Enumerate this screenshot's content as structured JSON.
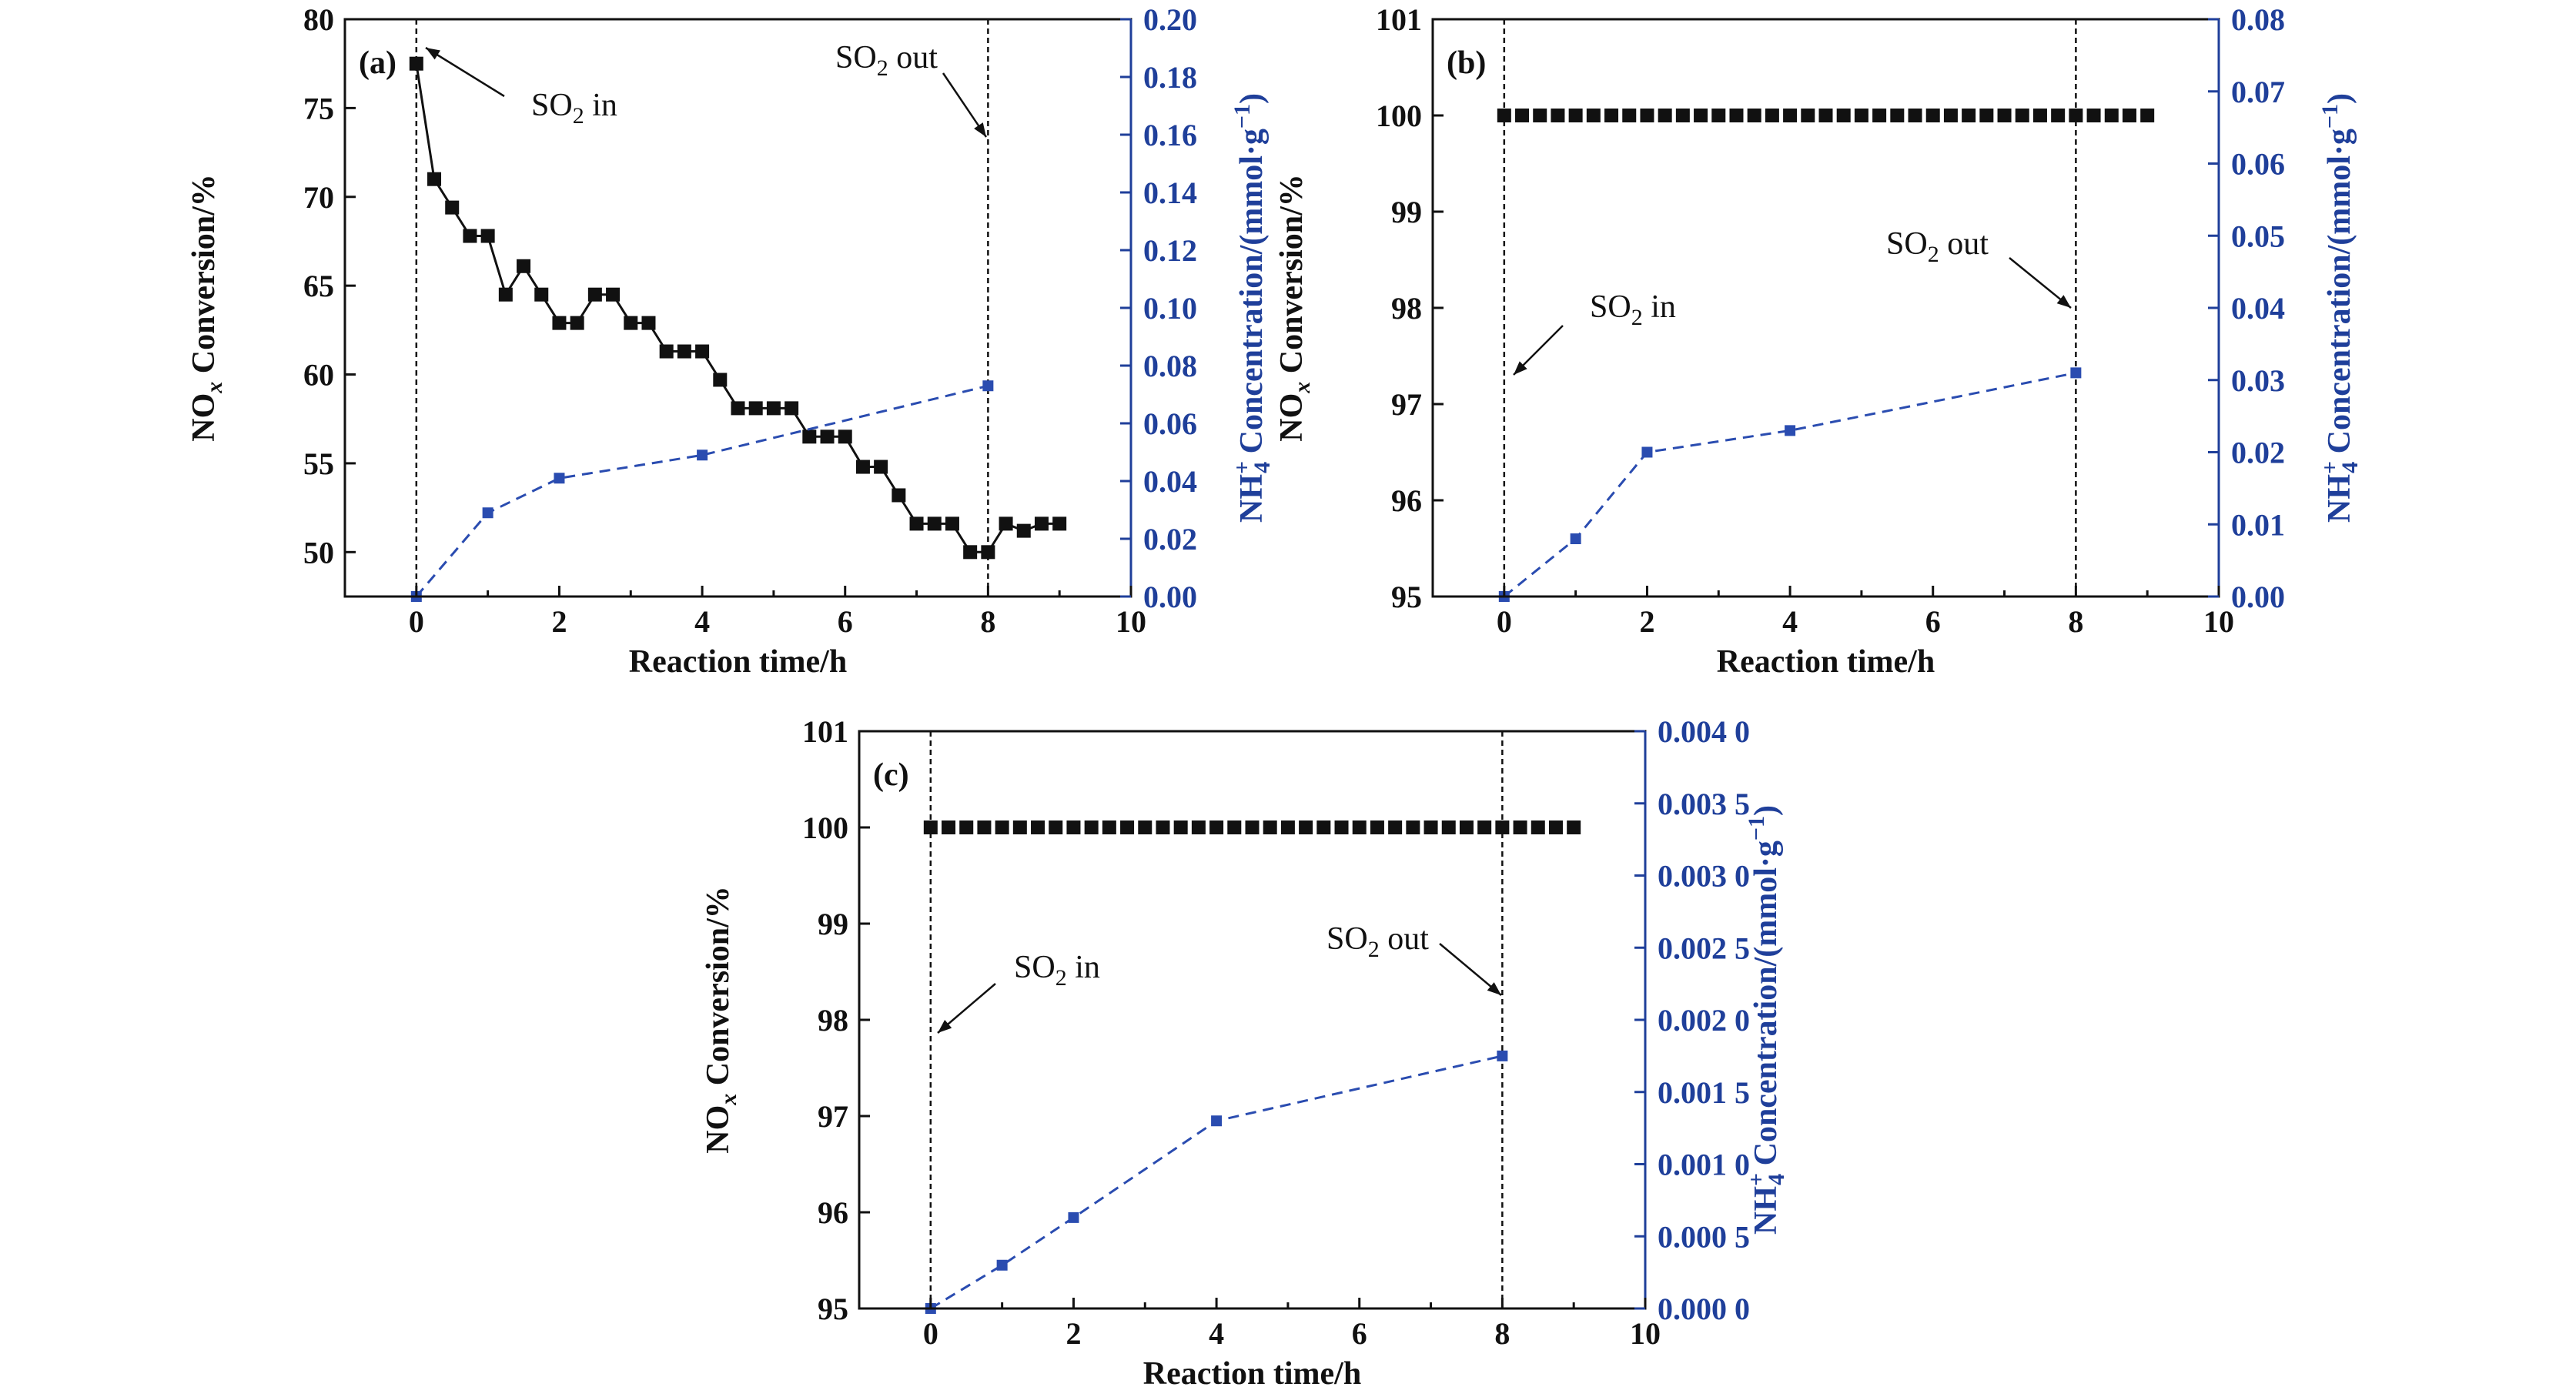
{
  "chart_data": [
    {
      "panel_label": "(a)",
      "type": "line",
      "xlabel": "Reaction time/h",
      "ylabel": {
        "main": "NO",
        "sub": "x",
        "tail": " Conversion/%"
      },
      "y2label": {
        "main": "NH",
        "sup": "+",
        "sub": "4",
        "tail": " Concentration/(mmol·g",
        "tail_sup": "−1",
        "close": ")"
      },
      "xlim": [
        -1,
        10
      ],
      "ylim": [
        47.5,
        80
      ],
      "y2lim": [
        0,
        0.2
      ],
      "x_ticks": [
        0,
        2,
        4,
        6,
        8,
        10
      ],
      "x_tick_labels": [
        "0",
        "2",
        "4",
        "6",
        "8",
        "10"
      ],
      "y_ticks": [
        50,
        55,
        60,
        65,
        70,
        75,
        80
      ],
      "y_tick_labels": [
        "50",
        "55",
        "60",
        "65",
        "70",
        "75",
        "80"
      ],
      "y2_ticks": [
        0,
        0.02,
        0.04,
        0.06,
        0.08,
        0.1,
        0.12,
        0.14,
        0.16,
        0.18,
        0.2
      ],
      "y2_tick_labels": [
        "0.00",
        "0.02",
        "0.04",
        "0.06",
        "0.08",
        "0.10",
        "0.12",
        "0.14",
        "0.16",
        "0.18",
        "0.20"
      ],
      "y2_color": "#1f3f9a",
      "vlines": [
        0,
        8
      ],
      "series": [
        {
          "axis": "left",
          "color": "#111111",
          "style": "solid",
          "x": [
            0,
            0.25,
            0.5,
            0.75,
            1.0,
            1.25,
            1.5,
            1.75,
            2.0,
            2.25,
            2.5,
            2.75,
            3.0,
            3.25,
            3.5,
            3.75,
            4.0,
            4.25,
            4.5,
            4.75,
            5.0,
            5.25,
            5.5,
            5.75,
            6.0,
            6.25,
            6.5,
            6.75,
            7.0,
            7.25,
            7.5,
            7.75,
            8.0,
            8.25,
            8.5,
            8.75,
            9.0
          ],
          "y": [
            77.5,
            71.0,
            69.4,
            67.8,
            67.8,
            64.5,
            66.1,
            64.5,
            62.9,
            62.9,
            64.5,
            64.5,
            62.9,
            62.9,
            61.3,
            61.3,
            61.3,
            59.7,
            58.1,
            58.1,
            58.1,
            58.1,
            56.5,
            56.5,
            56.5,
            54.8,
            54.8,
            53.2,
            51.6,
            51.6,
            51.6,
            50.0,
            50.0,
            51.6,
            51.2,
            51.6,
            51.6
          ]
        },
        {
          "axis": "right",
          "color": "#2a4cb0",
          "style": "dashed",
          "x": [
            0,
            1,
            2,
            4,
            8
          ],
          "y": [
            0.0,
            0.029,
            0.041,
            0.049,
            0.073
          ]
        }
      ],
      "annotations": [
        {
          "main": "SO",
          "sub": "2",
          "tail": " in"
        },
        {
          "main": "SO",
          "sub": "2",
          "tail": " out"
        }
      ]
    },
    {
      "panel_label": "(b)",
      "type": "line",
      "xlabel": "Reaction time/h",
      "ylabel": {
        "main": "NO",
        "sub": "x",
        "tail": " Conversion/%"
      },
      "y2label": {
        "main": "NH",
        "sup": "+",
        "sub": "4",
        "tail": " Concentration/(mmol·g",
        "tail_sup": "−1",
        "close": ")"
      },
      "xlim": [
        -1,
        10
      ],
      "ylim": [
        95,
        101
      ],
      "y2lim": [
        0,
        0.08
      ],
      "x_ticks": [
        0,
        2,
        4,
        6,
        8,
        10
      ],
      "x_tick_labels": [
        "0",
        "2",
        "4",
        "6",
        "8",
        "10"
      ],
      "y_ticks": [
        95,
        96,
        97,
        98,
        99,
        100,
        101
      ],
      "y_tick_labels": [
        "95",
        "96",
        "97",
        "98",
        "99",
        "100",
        "101"
      ],
      "y2_ticks": [
        0,
        0.01,
        0.02,
        0.03,
        0.04,
        0.05,
        0.06,
        0.07,
        0.08
      ],
      "y2_tick_labels": [
        "0.00",
        "0.01",
        "0.02",
        "0.03",
        "0.04",
        "0.05",
        "0.06",
        "0.07",
        "0.08"
      ],
      "y2_color": "#1f3f9a",
      "vlines": [
        0,
        8
      ],
      "series": [
        {
          "axis": "left",
          "color": "#111111",
          "style": "markers",
          "x": [
            0,
            0.25,
            0.5,
            0.75,
            1.0,
            1.25,
            1.5,
            1.75,
            2.0,
            2.25,
            2.5,
            2.75,
            3.0,
            3.25,
            3.5,
            3.75,
            4.0,
            4.25,
            4.5,
            4.75,
            5.0,
            5.25,
            5.5,
            5.75,
            6.0,
            6.25,
            6.5,
            6.75,
            7.0,
            7.25,
            7.5,
            7.75,
            8.0,
            8.25,
            8.5,
            8.75,
            9.0
          ],
          "y": [
            100,
            100,
            100,
            100,
            100,
            100,
            100,
            100,
            100,
            100,
            100,
            100,
            100,
            100,
            100,
            100,
            100,
            100,
            100,
            100,
            100,
            100,
            100,
            100,
            100,
            100,
            100,
            100,
            100,
            100,
            100,
            100,
            100,
            100,
            100,
            100,
            100
          ]
        },
        {
          "axis": "right",
          "color": "#2a4cb0",
          "style": "dashed",
          "x": [
            0,
            1,
            2,
            4,
            8
          ],
          "y": [
            0.0,
            0.008,
            0.02,
            0.023,
            0.031
          ]
        }
      ],
      "annotations": [
        {
          "main": "SO",
          "sub": "2",
          "tail": " in"
        },
        {
          "main": "SO",
          "sub": "2",
          "tail": " out"
        }
      ]
    },
    {
      "panel_label": "(c)",
      "type": "line",
      "xlabel": "Reaction time/h",
      "ylabel": {
        "main": "NO",
        "sub": "x",
        "tail": " Conversion/%"
      },
      "y2label": {
        "main": "NH",
        "sup": "+",
        "sub": "4",
        "tail": " Concentration/(mmol·g",
        "tail_sup": "−1",
        "close": ")"
      },
      "xlim": [
        -1,
        10
      ],
      "ylim": [
        95,
        101
      ],
      "y2lim": [
        0,
        0.004
      ],
      "x_ticks": [
        0,
        2,
        4,
        6,
        8,
        10
      ],
      "x_tick_labels": [
        "0",
        "2",
        "4",
        "6",
        "8",
        "10"
      ],
      "y_ticks": [
        95,
        96,
        97,
        98,
        99,
        100,
        101
      ],
      "y_tick_labels": [
        "95",
        "96",
        "97",
        "98",
        "99",
        "100",
        "101"
      ],
      "y2_ticks": [
        0,
        0.0005,
        0.001,
        0.0015,
        0.002,
        0.0025,
        0.003,
        0.0035,
        0.004
      ],
      "y2_tick_labels": [
        "0.000 0",
        "0.000 5",
        "0.001 0",
        "0.001 5",
        "0.002 0",
        "0.002 5",
        "0.003 0",
        "0.003 5",
        "0.004 0"
      ],
      "y2_color": "#1f3f9a",
      "vlines": [
        0,
        8
      ],
      "series": [
        {
          "axis": "left",
          "color": "#111111",
          "style": "markers",
          "x": [
            0,
            0.25,
            0.5,
            0.75,
            1.0,
            1.25,
            1.5,
            1.75,
            2.0,
            2.25,
            2.5,
            2.75,
            3.0,
            3.25,
            3.5,
            3.75,
            4.0,
            4.25,
            4.5,
            4.75,
            5.0,
            5.25,
            5.5,
            5.75,
            6.0,
            6.25,
            6.5,
            6.75,
            7.0,
            7.25,
            7.5,
            7.75,
            8.0,
            8.25,
            8.5,
            8.75,
            9.0
          ],
          "y": [
            100,
            100,
            100,
            100,
            100,
            100,
            100,
            100,
            100,
            100,
            100,
            100,
            100,
            100,
            100,
            100,
            100,
            100,
            100,
            100,
            100,
            100,
            100,
            100,
            100,
            100,
            100,
            100,
            100,
            100,
            100,
            100,
            100,
            100,
            100,
            100,
            100
          ]
        },
        {
          "axis": "right",
          "color": "#2a4cb0",
          "style": "dashed",
          "x": [
            0,
            1,
            2,
            4,
            8
          ],
          "y": [
            0.0,
            0.0003,
            0.00063,
            0.0013,
            0.00175
          ]
        }
      ],
      "annotations": [
        {
          "main": "SO",
          "sub": "2",
          "tail": " in"
        },
        {
          "main": "SO",
          "sub": "2",
          "tail": " out"
        }
      ]
    }
  ]
}
